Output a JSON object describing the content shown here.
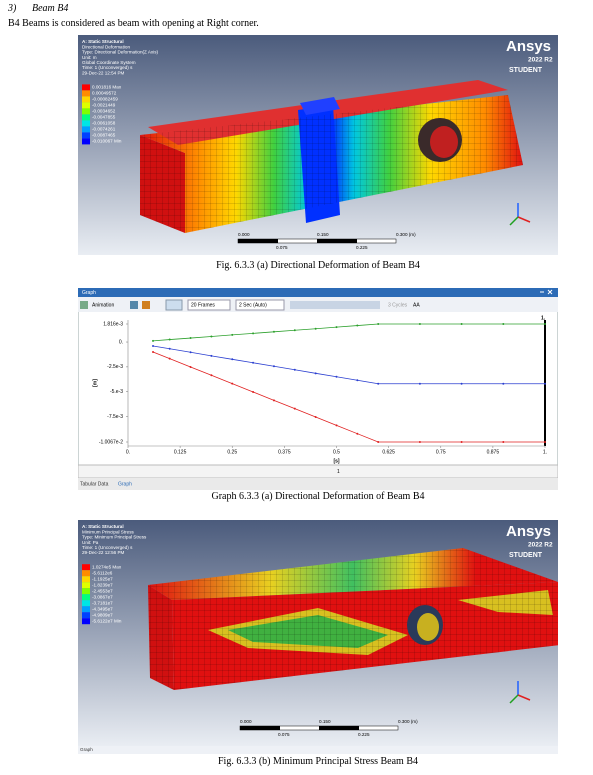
{
  "heading": {
    "number": "3)",
    "title": "Beam B4"
  },
  "intro": "B4 Beams is considered as beam with opening at Right corner.",
  "figure_a": {
    "header": [
      "A: Static Structural",
      "Directional Deformation",
      "Type: Directional Deformation(Z Axis)",
      "Unit: m",
      "Global Coordinate System",
      "Time: 1 (Unconverged) s",
      "29-Dec-22 12:54 PM"
    ],
    "legend": [
      "0.001816 Max",
      "0.00049572",
      "-0.00082459",
      "-0.0021449",
      "-0.0034652",
      "-0.0047855",
      "-0.0061058",
      "-0.0074261",
      "-0.0087465",
      "-0.010067 Min"
    ],
    "logo": [
      "Ansys",
      "2022 R2",
      "STUDENT"
    ],
    "scale_top": [
      "0.000",
      "0.150",
      "0.300 (m)"
    ],
    "scale_bottom": [
      "0.075",
      "0.225"
    ],
    "caption": "Fig. 6.3.3 (a) Directional Deformation of Beam B4"
  },
  "graph_window": {
    "title": "Graph",
    "toolbar": [
      "Animation",
      "20 Frames",
      "2 Sec (Auto)",
      "3 Cycles",
      "AA"
    ],
    "time_marker": "1.",
    "row_value": "1",
    "tabs": [
      "Tabular Data",
      "Graph"
    ],
    "caption": "Graph 6.3.3 (a) Directional Deformation of Beam B4"
  },
  "chart_data": {
    "type": "line",
    "xlabel": "[s]",
    "ylabel": "[m]",
    "x": [
      0.06,
      0.1,
      0.15,
      0.2,
      0.25,
      0.3,
      0.35,
      0.4,
      0.45,
      0.5,
      0.55,
      0.6,
      0.7,
      0.8,
      0.9,
      1.0
    ],
    "series": [
      {
        "color": "#2ca02c",
        "values": [
          0.00012,
          0.00025,
          0.0004,
          0.00056,
          0.00072,
          0.00087,
          0.00103,
          0.00119,
          0.00134,
          0.0015,
          0.00166,
          0.001816,
          0.001816,
          0.001816,
          0.001816,
          0.001816
        ]
      },
      {
        "color": "#2b3fd0",
        "values": [
          -0.0004,
          -0.00068,
          -0.00103,
          -0.00139,
          -0.00174,
          -0.00209,
          -0.00244,
          -0.00279,
          -0.00315,
          -0.0035,
          -0.00385,
          -0.0042,
          -0.0042,
          -0.0042,
          -0.0042,
          -0.0042
        ]
      },
      {
        "color": "#e02020",
        "values": [
          -0.001,
          -0.00167,
          -0.00251,
          -0.00335,
          -0.00419,
          -0.00503,
          -0.00587,
          -0.00671,
          -0.00755,
          -0.00839,
          -0.00923,
          -0.010067,
          -0.010067,
          -0.010067,
          -0.010067,
          -0.010067
        ]
      }
    ],
    "xlim": [
      0,
      1
    ],
    "ylim": [
      -0.010067,
      0.001816
    ],
    "xticks": [
      {
        "value": 0,
        "label": "0."
      },
      0.125,
      0.25,
      0.375,
      0.5,
      0.625,
      0.75,
      0.875,
      {
        "value": 1,
        "label": "1."
      }
    ],
    "yticks": [
      {
        "value": 0.001816,
        "label": "1.816e-3"
      },
      {
        "value": 0,
        "label": "0."
      },
      {
        "value": -0.0025,
        "label": "-2.5e-3"
      },
      {
        "value": -0.005,
        "label": "-5.e-3"
      },
      {
        "value": -0.0075,
        "label": "-7.5e-3"
      },
      {
        "value": -0.010067,
        "label": "-1.0067e-2"
      }
    ],
    "grid": false
  },
  "figure_b": {
    "header": [
      "A: Static Structural",
      "Minimum Principal Stress",
      "Type: Minimum Principal Stress",
      "Unit: Pa",
      "Time: 1 (Unconverged) s",
      "29-Dec-22 12:56 PM"
    ],
    "legend": [
      "1.0274e5 Max",
      "-5.6112e6",
      "-1.1925e7",
      "-1.8239e7",
      "-2.4553e7",
      "-3.0867e7",
      "-3.7181e7",
      "-4.3495e7",
      "-4.9809e7",
      "-5.6122e7 Min"
    ],
    "logo": [
      "Ansys",
      "2022 R2",
      "STUDENT"
    ],
    "scale_top": [
      "0.000",
      "0.150",
      "0.300 (m)"
    ],
    "scale_bottom": [
      "0.075",
      "0.225"
    ],
    "footer": "Graph",
    "caption": "Fig. 6.3.3 (b) Minimum Principal Stress Beam B4"
  }
}
